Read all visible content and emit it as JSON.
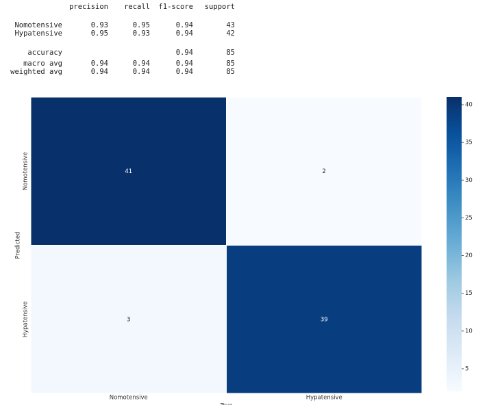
{
  "report": {
    "header": [
      "precision",
      "recall",
      "f1-score",
      "support"
    ],
    "rows": [
      [
        "Nomotensive",
        "0.93",
        "0.95",
        "0.94",
        "43"
      ],
      [
        "Hypatensive",
        "0.95",
        "0.93",
        "0.94",
        "42"
      ],
      [
        "accuracy",
        null,
        null,
        "0.94",
        "85"
      ],
      [
        "macro avg",
        "0.94",
        "0.94",
        "0.94",
        "85"
      ],
      [
        "weighted avg",
        "0.94",
        "0.94",
        "0.94",
        "85"
      ]
    ]
  },
  "chart_data": {
    "type": "heatmap",
    "xlabel": "True",
    "ylabel": "Predicted",
    "x_categories": [
      "Nomotensive",
      "Hypatensive"
    ],
    "y_categories": [
      "Nomotensive",
      "Hypatensive"
    ],
    "values": [
      [
        41,
        2
      ],
      [
        3,
        39
      ]
    ],
    "zlim": [
      2,
      41
    ],
    "zticks": [
      5,
      10,
      15,
      20,
      25,
      30,
      35,
      40
    ],
    "colorscale": [
      "#f7fbff",
      "#deebf7",
      "#c6dbef",
      "#9ecae1",
      "#6baed6",
      "#4292c6",
      "#2171b5",
      "#08519c",
      "#08306b"
    ]
  }
}
